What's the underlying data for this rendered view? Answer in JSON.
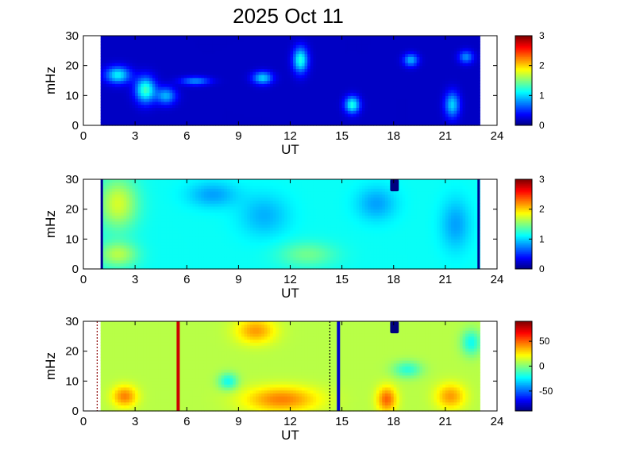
{
  "chart_data": {
    "type": "heatmap",
    "title": "2025 Oct 11",
    "panels": [
      {
        "ylabel": "mHz",
        "xlabel": "UT",
        "xlim": [
          0,
          24
        ],
        "ylim": [
          0,
          30
        ],
        "xticks": [
          "0",
          "3",
          "6",
          "9",
          "12",
          "15",
          "18",
          "21",
          "24"
        ],
        "yticks": [
          "0",
          "10",
          "20",
          "30"
        ],
        "data_range_ut": [
          1,
          23
        ],
        "colorbar": {
          "range": [
            0,
            3
          ],
          "ticks": [
            "0",
            "1",
            "2",
            "3"
          ]
        },
        "base_value": 0.2,
        "features": [
          {
            "ut": 2.0,
            "mhz": 17,
            "value": 0.9,
            "sigma_ut": 0.5,
            "sigma_mhz": 2
          },
          {
            "ut": 3.6,
            "mhz": 12,
            "value": 1.1,
            "sigma_ut": 0.4,
            "sigma_mhz": 3
          },
          {
            "ut": 4.8,
            "mhz": 10,
            "value": 0.7,
            "sigma_ut": 0.4,
            "sigma_mhz": 2
          },
          {
            "ut": 6.5,
            "mhz": 15,
            "value": 0.6,
            "sigma_ut": 0.6,
            "sigma_mhz": 1
          },
          {
            "ut": 10.4,
            "mhz": 16,
            "value": 0.8,
            "sigma_ut": 0.4,
            "sigma_mhz": 1.5
          },
          {
            "ut": 12.6,
            "mhz": 22,
            "value": 1.0,
            "sigma_ut": 0.3,
            "sigma_mhz": 3
          },
          {
            "ut": 15.6,
            "mhz": 7,
            "value": 1.0,
            "sigma_ut": 0.3,
            "sigma_mhz": 2
          },
          {
            "ut": 19.0,
            "mhz": 22,
            "value": 0.7,
            "sigma_ut": 0.3,
            "sigma_mhz": 1.5
          },
          {
            "ut": 21.4,
            "mhz": 7,
            "value": 0.8,
            "sigma_ut": 0.3,
            "sigma_mhz": 3
          },
          {
            "ut": 22.2,
            "mhz": 23,
            "value": 0.6,
            "sigma_ut": 0.3,
            "sigma_mhz": 1.5
          }
        ]
      },
      {
        "ylabel": "mHz",
        "xlabel": "UT",
        "xlim": [
          0,
          24
        ],
        "ylim": [
          0,
          30
        ],
        "xticks": [
          "0",
          "3",
          "6",
          "9",
          "12",
          "15",
          "18",
          "21",
          "24"
        ],
        "yticks": [
          "0",
          "10",
          "20",
          "30"
        ],
        "data_range_ut": [
          1,
          23
        ],
        "colorbar": {
          "range": [
            0,
            3
          ],
          "ticks": [
            "0",
            "1",
            "2",
            "3"
          ]
        },
        "base_value": 1.15,
        "features": [
          {
            "ut": 2.0,
            "mhz": 22,
            "value": 0.6,
            "sigma_ut": 0.8,
            "sigma_mhz": 6
          },
          {
            "ut": 2.0,
            "mhz": 5,
            "value": 0.5,
            "sigma_ut": 0.8,
            "sigma_mhz": 3
          },
          {
            "ut": 7.5,
            "mhz": 25,
            "value": -0.3,
            "sigma_ut": 1.0,
            "sigma_mhz": 3
          },
          {
            "ut": 10.5,
            "mhz": 18,
            "value": -0.25,
            "sigma_ut": 1.0,
            "sigma_mhz": 5
          },
          {
            "ut": 17.0,
            "mhz": 22,
            "value": -0.3,
            "sigma_ut": 0.8,
            "sigma_mhz": 4
          },
          {
            "ut": 21.6,
            "mhz": 15,
            "value": -0.3,
            "sigma_ut": 0.6,
            "sigma_mhz": 6
          },
          {
            "ut": 13.0,
            "mhz": 5,
            "value": 0.3,
            "sigma_ut": 1.2,
            "sigma_mhz": 3
          }
        ],
        "gap": {
          "ut": [
            17.8,
            18.3
          ],
          "mhz": [
            26,
            30
          ],
          "value": 0
        }
      },
      {
        "ylabel": "mHz",
        "xlabel": "UT",
        "xlim": [
          0,
          24
        ],
        "ylim": [
          0,
          30
        ],
        "xticks": [
          "0",
          "3",
          "6",
          "9",
          "12",
          "15",
          "18",
          "21",
          "24"
        ],
        "yticks": [
          "0",
          "10",
          "20",
          "30"
        ],
        "data_range_ut": [
          1,
          23
        ],
        "colorbar": {
          "range": [
            -90,
            90
          ],
          "ticks": [
            "50",
            "0",
            "-50"
          ],
          "tick_values": [
            50,
            0,
            -50
          ]
        },
        "base_value": 10,
        "features": [
          {
            "ut": 2.4,
            "mhz": 5,
            "value": 35,
            "sigma_ut": 0.5,
            "sigma_mhz": 2.5
          },
          {
            "ut": 11.5,
            "mhz": 4,
            "value": 35,
            "sigma_ut": 1.5,
            "sigma_mhz": 3
          },
          {
            "ut": 17.6,
            "mhz": 4,
            "value": 40,
            "sigma_ut": 0.4,
            "sigma_mhz": 3
          },
          {
            "ut": 21.3,
            "mhz": 5,
            "value": 30,
            "sigma_ut": 0.6,
            "sigma_mhz": 3
          },
          {
            "ut": 10.0,
            "mhz": 27,
            "value": 30,
            "sigma_ut": 0.8,
            "sigma_mhz": 3
          },
          {
            "ut": 8.4,
            "mhz": 10,
            "value": -30,
            "sigma_ut": 0.4,
            "sigma_mhz": 2
          },
          {
            "ut": 18.8,
            "mhz": 14,
            "value": -25,
            "sigma_ut": 0.6,
            "sigma_mhz": 2
          },
          {
            "ut": 22.5,
            "mhz": 23,
            "value": -30,
            "sigma_ut": 0.4,
            "sigma_mhz": 3
          }
        ],
        "gap": {
          "ut": [
            17.8,
            18.3
          ],
          "mhz": [
            26,
            30
          ],
          "value": -90
        },
        "markers": [
          {
            "ut": 0.8,
            "style": "dotted",
            "color": "#8b0000"
          },
          {
            "ut": 5.5,
            "style": "solid",
            "color": "#cc0000"
          },
          {
            "ut": 14.3,
            "style": "dotted",
            "color": "#000000"
          },
          {
            "ut": 14.8,
            "style": "solid",
            "color": "#0000cc"
          }
        ]
      }
    ]
  }
}
